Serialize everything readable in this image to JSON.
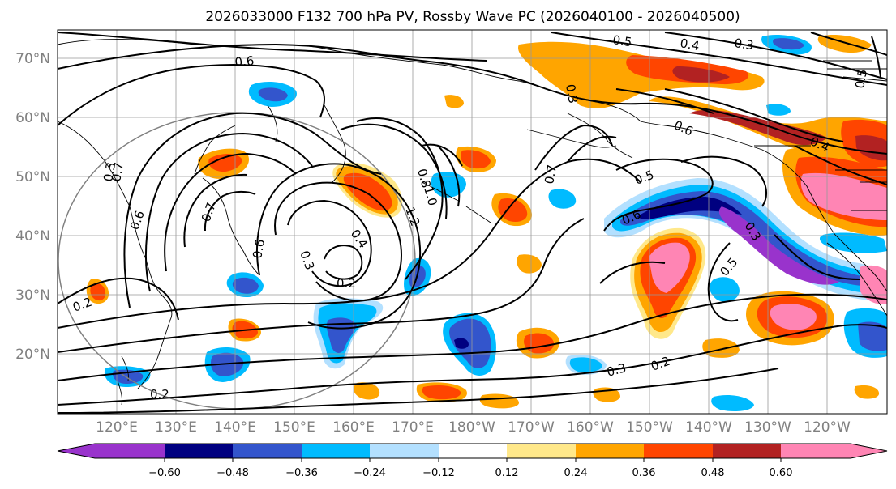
{
  "title": "2026033000 F132 700 hPa PV, Rossby Wave PC (2026040100 - 2026040500)",
  "map": {
    "lat_labels": [
      "70°N",
      "60°N",
      "50°N",
      "40°N",
      "30°N",
      "20°N"
    ],
    "lon_labels": [
      "120°E",
      "130°E",
      "140°E",
      "150°E",
      "160°E",
      "170°E",
      "180°W",
      "170°W",
      "160°W",
      "150°W",
      "140°W",
      "130°W",
      "120°W"
    ]
  },
  "contour_labels": [
    "0.6",
    "0.5",
    "0.4",
    "0.3",
    "0.7",
    "0.7",
    "0.6",
    "0.6",
    "0.8",
    "1.0",
    "1.2",
    "0.4",
    "0.3",
    "0.2",
    "0.2",
    "0.3",
    "0.3",
    "0.2",
    "0.7",
    "0.5",
    "0.6",
    "0.6",
    "0.3",
    "0.5",
    "0.4",
    "0.5",
    "0.3",
    "0.2"
  ],
  "colorbar": {
    "ticks": [
      "−0.60",
      "−0.48",
      "−0.36",
      "−0.24",
      "−0.12",
      "0.12",
      "0.24",
      "0.36",
      "0.48",
      "0.60"
    ],
    "colors": {
      "below": "#9933cc",
      "n048": "#000080",
      "n036": "#3355cc",
      "n024": "#00bbff",
      "n012": "#b3e0ff",
      "zero": "#ffffff",
      "p012": "#ffe88a",
      "p024": "#ffa500",
      "p036": "#ff4500",
      "p048": "#b22222",
      "above": "#ff85b4"
    }
  }
}
